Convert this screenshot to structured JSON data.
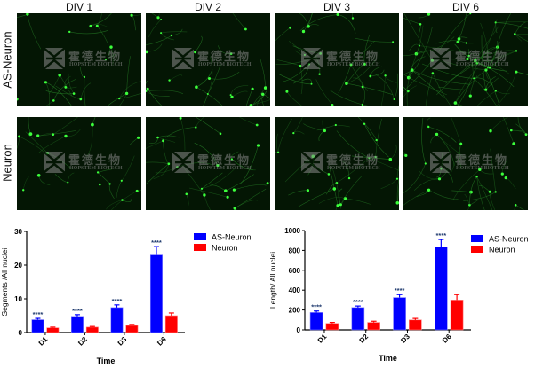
{
  "figure": {
    "columns": [
      "DIV 1",
      "DIV 2",
      "DIV 3",
      "DIV 6"
    ],
    "rows": [
      "AS-Neuron",
      "Neuron"
    ],
    "watermark": {
      "chinese": "霍德生物",
      "english": "HOPSTEM BIOTECH"
    },
    "colors": {
      "as_neuron": "#0000ff",
      "neuron": "#ff0000",
      "panel_bg": "#041604",
      "cell": "#3cff3c"
    },
    "panel_density": [
      [
        0.35,
        0.5,
        0.6,
        1.0
      ],
      [
        0.35,
        0.45,
        0.5,
        0.55
      ]
    ]
  },
  "chart_data": [
    {
      "type": "bar",
      "title": "",
      "xlabel": "Time",
      "ylabel": "Segments /All nuclei",
      "categories": [
        "D1",
        "D2",
        "D3",
        "D6"
      ],
      "ylim": [
        0,
        30
      ],
      "yticks": [
        "0",
        "10",
        "20",
        "30"
      ],
      "ytick_values": [
        0,
        10,
        20,
        30
      ],
      "legend": "top-right",
      "series": [
        {
          "name": "AS-Neuron",
          "color": "#0000ff",
          "values": [
            3.8,
            4.8,
            7.4,
            23.0
          ],
          "errors": [
            0.4,
            0.5,
            0.8,
            2.5
          ]
        },
        {
          "name": "Neuron",
          "color": "#ff0000",
          "values": [
            1.4,
            1.6,
            2.1,
            5.0
          ],
          "errors": [
            0.2,
            0.2,
            0.3,
            0.8
          ]
        }
      ],
      "annotations": [
        "****",
        "****",
        "****",
        "****"
      ]
    },
    {
      "type": "bar",
      "title": "",
      "xlabel": "Time",
      "ylabel": "Length/ All nuclei",
      "categories": [
        "D1",
        "D2",
        "D3",
        "D6"
      ],
      "ylim": [
        0,
        1000
      ],
      "yticks": [
        "0",
        "200",
        "400",
        "600",
        "800",
        "1000"
      ],
      "ytick_values": [
        0,
        200,
        400,
        600,
        800,
        1000
      ],
      "legend": "top-right",
      "series": [
        {
          "name": "AS-Neuron",
          "color": "#0000ff",
          "values": [
            175,
            225,
            325,
            835
          ],
          "errors": [
            15,
            15,
            30,
            75
          ]
        },
        {
          "name": "Neuron",
          "color": "#ff0000",
          "values": [
            65,
            75,
            100,
            300
          ],
          "errors": [
            10,
            12,
            15,
            55
          ]
        }
      ],
      "annotations": [
        "****",
        "****",
        "****",
        "****"
      ]
    }
  ]
}
